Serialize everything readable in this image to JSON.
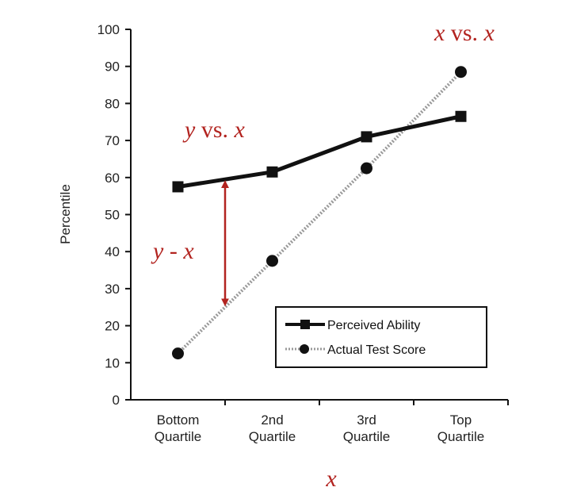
{
  "chart_data": {
    "type": "line",
    "categories": [
      "Bottom Quartile",
      "2nd Quartile",
      "3rd Quartile",
      "Top Quartile"
    ],
    "category_lines": [
      [
        "Bottom",
        "Quartile"
      ],
      [
        "2nd",
        "Quartile"
      ],
      [
        "3rd",
        "Quartile"
      ],
      [
        "Top",
        "Quartile"
      ]
    ],
    "series": [
      {
        "name": "Perceived Ability",
        "values": [
          57.5,
          61.5,
          71,
          76.5
        ],
        "marker": "square",
        "color": "#111111",
        "style": "solid"
      },
      {
        "name": "Actual Test Score",
        "values": [
          12.5,
          37.5,
          62.5,
          88.5
        ],
        "marker": "circle",
        "color": "#9a9a9a",
        "style": "dotted"
      }
    ],
    "ylabel": "Percentile",
    "ylim": [
      0,
      100
    ],
    "yticks": [
      0,
      10,
      20,
      30,
      40,
      50,
      60,
      70,
      80,
      90,
      100
    ],
    "grid": false,
    "legend_position": "bottom-right",
    "annotations": {
      "top_right": {
        "text_parts": [
          "x",
          " vs. ",
          "x"
        ]
      },
      "middle_left": {
        "text_parts": [
          "y",
          " vs. ",
          "x"
        ]
      },
      "difference": {
        "text_parts": [
          "y",
          " - ",
          "x"
        ]
      },
      "xlabel": "x"
    },
    "annotation_color": "#b2231f",
    "difference_arrow": {
      "category_index": 0.5,
      "from_series": 0,
      "to_series": 1
    }
  }
}
